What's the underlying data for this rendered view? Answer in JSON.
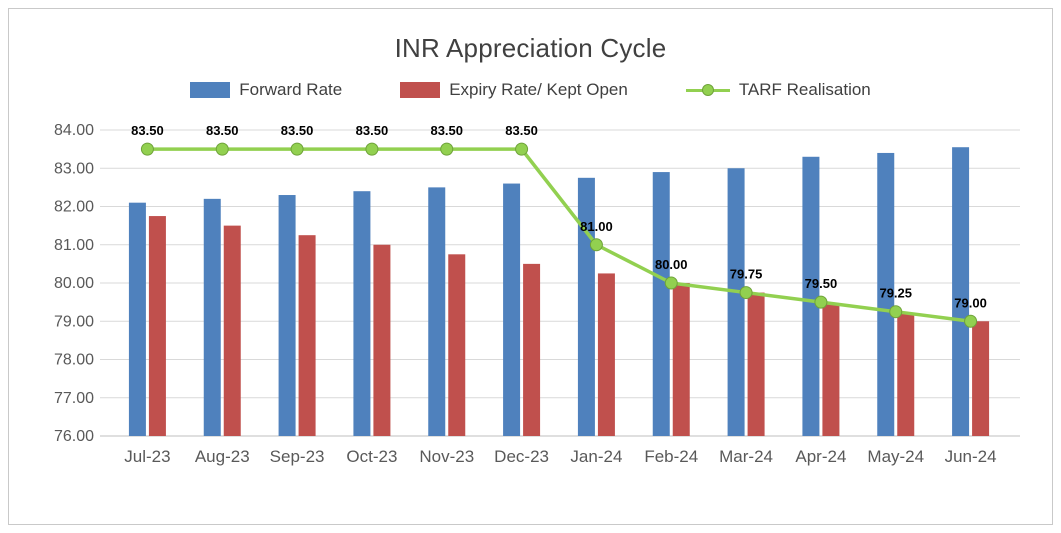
{
  "chart_data": {
    "type": "bar",
    "title": "INR Appreciation Cycle",
    "categories": [
      "Jul-23",
      "Aug-23",
      "Sep-23",
      "Oct-23",
      "Nov-23",
      "Dec-23",
      "Jan-24",
      "Feb-24",
      "Mar-24",
      "Apr-24",
      "May-24",
      "Jun-24"
    ],
    "series": [
      {
        "name": "Forward Rate",
        "type": "bar",
        "color": "#4f81bd",
        "values": [
          82.1,
          82.2,
          82.3,
          82.4,
          82.5,
          82.6,
          82.75,
          82.9,
          83.0,
          83.3,
          83.4,
          83.55
        ]
      },
      {
        "name": "Expiry Rate/ Kept Open",
        "type": "bar",
        "color": "#c0504d",
        "values": [
          81.75,
          81.5,
          81.25,
          81.0,
          80.75,
          80.5,
          80.25,
          80.0,
          79.75,
          79.45,
          79.2,
          79.0
        ]
      },
      {
        "name": "TARF Realisation",
        "type": "line",
        "color": "#92d050",
        "marker_stroke": "#6fa33a",
        "values": [
          83.5,
          83.5,
          83.5,
          83.5,
          83.5,
          83.5,
          81.0,
          80.0,
          79.75,
          79.5,
          79.25,
          79.0
        ],
        "labels": [
          "83.50",
          "83.50",
          "83.50",
          "83.50",
          "83.50",
          "83.50",
          "81.00",
          "80.00",
          "79.75",
          "79.50",
          "79.25",
          "79.00"
        ]
      }
    ],
    "ylim": [
      76,
      84
    ],
    "ytick_step": 1,
    "ytick_labels": [
      "76.00",
      "77.00",
      "78.00",
      "79.00",
      "80.00",
      "81.00",
      "82.00",
      "83.00",
      "84.00"
    ],
    "grid": true,
    "legend_position": "top",
    "gridline_color": "#d9d9d9",
    "axis_line_color": "#bfbfbf",
    "axis_text_color": "#595959",
    "data_label_color": "#000000"
  }
}
